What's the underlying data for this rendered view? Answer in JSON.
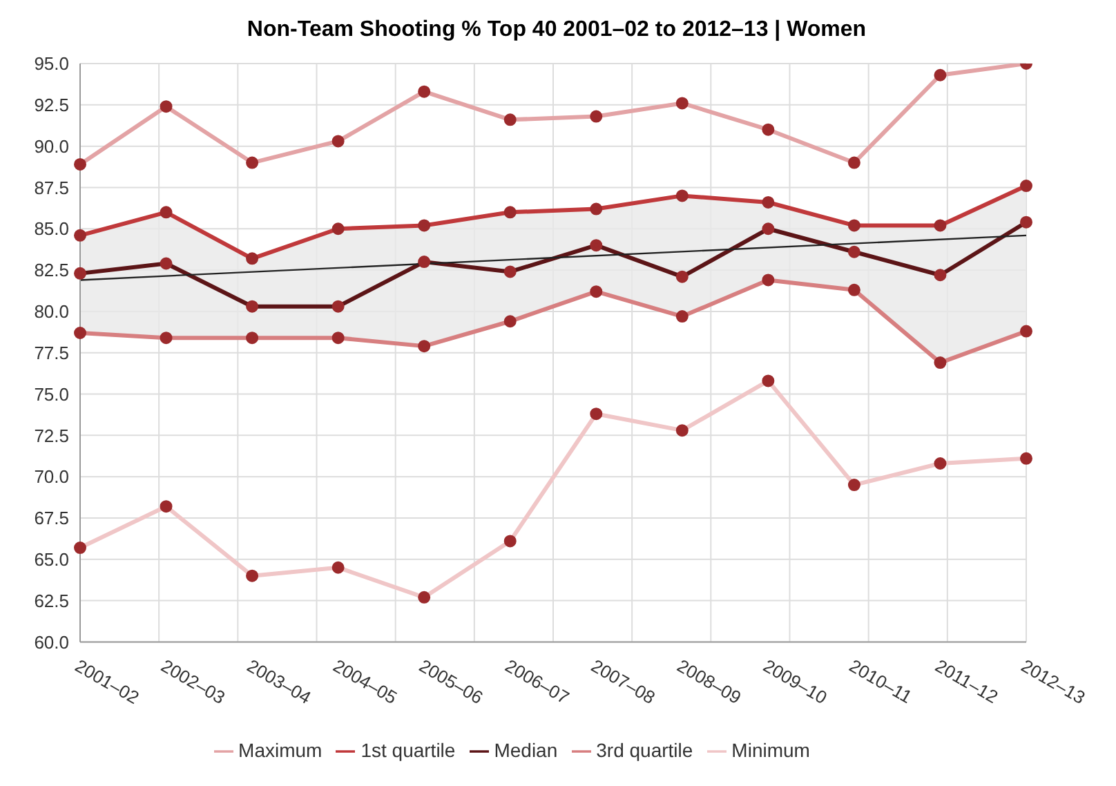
{
  "chart_data": {
    "type": "line",
    "title": "Non-Team Shooting % Top 40 2001–02 to 2012–13 | Women",
    "categories": [
      "2001–02",
      "2002–03",
      "2003–04",
      "2004–05",
      "2005–06",
      "2006–07",
      "2007–08",
      "2008–09",
      "2009–10",
      "2010–11",
      "2011–12",
      "2012–13"
    ],
    "series": [
      {
        "name": "Maximum",
        "color": "#e3a3a5",
        "values": [
          88.9,
          92.4,
          89.0,
          90.3,
          93.3,
          91.6,
          91.8,
          92.6,
          91.0,
          89.0,
          94.3,
          95.0
        ]
      },
      {
        "name": "1st quartile",
        "color": "#c0393b",
        "values": [
          84.6,
          86.0,
          83.2,
          85.0,
          85.2,
          86.0,
          86.2,
          87.0,
          86.6,
          85.2,
          85.2,
          87.6
        ]
      },
      {
        "name": "Median",
        "color": "#5c1517",
        "values": [
          82.3,
          82.9,
          80.3,
          80.3,
          83.0,
          82.4,
          84.0,
          82.1,
          85.0,
          83.6,
          82.2,
          85.4
        ],
        "lower": [
          78.7,
          78.4,
          78.4,
          78.4,
          77.9,
          79.4,
          81.2,
          79.7,
          81.9,
          81.3,
          76.9,
          78.8
        ],
        "upper": [
          84.6,
          86.0,
          83.2,
          85.0,
          85.2,
          86.0,
          86.2,
          87.0,
          86.6,
          85.2,
          85.2,
          87.6
        ]
      },
      {
        "name": "3rd quartile",
        "color": "#d77f80",
        "values": [
          78.7,
          78.4,
          78.4,
          78.4,
          77.9,
          79.4,
          81.2,
          79.7,
          81.9,
          81.3,
          76.9,
          78.8
        ]
      },
      {
        "name": "Minimum",
        "color": "#f0c6c7",
        "values": [
          65.7,
          68.2,
          64.0,
          64.5,
          62.7,
          66.1,
          73.8,
          72.8,
          75.8,
          69.5,
          70.8,
          71.1
        ]
      },
      {
        "type": "line",
        "color": "#222222",
        "x": [
          "2001–02",
          "2012–13"
        ],
        "values": [
          81.9,
          84.6
        ],
        "marker": "none"
      }
    ],
    "ylim": [
      60,
      95
    ],
    "yticks": [
      {
        "value": 60,
        "label": "60.0"
      },
      {
        "value": 62.5,
        "label": "62.5"
      },
      {
        "value": 65,
        "label": "65.0"
      },
      {
        "value": 67.5,
        "label": "67.5"
      },
      {
        "value": 70,
        "label": "70.0"
      },
      {
        "value": 72.5,
        "label": "72.5"
      },
      {
        "value": 75,
        "label": "75.0"
      },
      {
        "value": 77.5,
        "label": "77.5"
      },
      {
        "value": 80,
        "label": "80.0"
      },
      {
        "value": 82.5,
        "label": "82.5"
      },
      {
        "value": 85,
        "label": "85.0"
      },
      {
        "value": 87.5,
        "label": "87.5"
      },
      {
        "value": 90,
        "label": "90.0"
      },
      {
        "value": 92.5,
        "label": "92.5"
      },
      {
        "value": 95,
        "label": "95.0"
      }
    ],
    "grid": true,
    "legend": "bottom",
    "marker": "circle",
    "line_style": "solid"
  }
}
